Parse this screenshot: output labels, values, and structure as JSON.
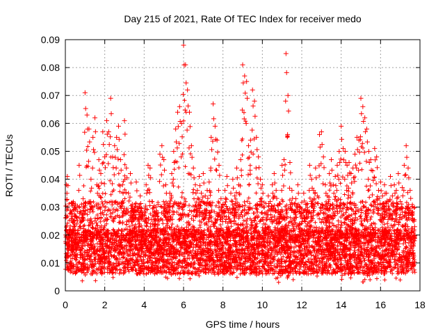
{
  "chart_data": {
    "type": "scatter",
    "title": "Day 215 of 2021, Rate Of TEC Index for receiver medo",
    "xlabel": "GPS time / hours",
    "ylabel": "ROTI / TECUs",
    "xlim": [
      0,
      18
    ],
    "ylim": [
      0,
      0.09
    ],
    "x_ticks": [
      "0",
      "2",
      "4",
      "6",
      "8",
      "10",
      "12",
      "14",
      "16",
      "18"
    ],
    "y_ticks": [
      "0",
      "0.01",
      "0.02",
      "0.03",
      "0.04",
      "0.05",
      "0.06",
      "0.07",
      "0.08",
      "0.09"
    ],
    "grid": true,
    "marker": "plus",
    "color": "#ff0000",
    "series": [
      {
        "x": [
          0.05,
          0.1,
          0.2,
          0.3,
          0.4,
          0.5,
          0.6,
          0.7,
          0.8,
          0.9,
          1.0,
          1.1,
          1.2,
          1.3,
          1.4,
          1.5,
          1.6,
          1.7,
          1.8,
          1.9,
          2.0,
          2.1,
          2.2,
          2.3,
          2.4,
          2.5,
          2.6,
          2.7,
          2.8,
          2.9,
          3.0,
          3.1,
          3.2,
          3.3,
          3.4,
          3.5,
          3.6,
          3.7,
          3.8,
          3.9,
          4.0,
          4.1,
          4.2,
          4.3,
          4.4,
          4.5,
          4.6,
          4.7,
          4.8,
          4.9,
          5.0,
          5.1,
          5.2,
          5.3,
          5.4,
          5.5,
          5.6,
          5.7,
          5.8,
          5.9,
          6.0,
          6.1,
          6.2,
          6.3,
          6.4,
          6.5,
          6.6,
          6.7,
          6.8,
          6.9,
          7.0,
          7.1,
          7.2,
          7.3,
          7.4,
          7.5,
          7.6,
          7.7,
          7.8,
          7.9,
          8.0,
          8.1,
          8.2,
          8.3,
          8.4,
          8.5,
          8.6,
          8.7,
          8.8,
          8.9,
          9.0,
          9.1,
          9.2,
          9.3,
          9.4,
          9.5,
          9.6,
          9.7,
          9.8,
          9.9,
          10.0,
          10.1,
          10.2,
          10.3,
          10.4,
          10.5,
          10.6,
          10.7,
          10.8,
          10.9,
          11.0,
          11.1,
          11.2,
          11.3,
          11.4,
          11.5,
          11.6,
          11.7,
          11.8,
          11.9,
          12.0,
          12.1,
          12.2,
          12.3,
          12.4,
          12.5,
          12.6,
          12.7,
          12.8,
          12.9,
          13.0,
          13.1,
          13.2,
          13.3,
          13.4,
          13.5,
          13.6,
          13.7,
          13.8,
          13.9,
          14.0,
          14.1,
          14.2,
          14.3,
          14.4,
          14.5,
          14.6,
          14.7,
          14.8,
          14.9,
          15.0,
          15.1,
          15.2,
          15.3,
          15.4,
          15.5,
          15.6,
          15.7,
          15.8,
          15.9,
          16.0,
          16.1,
          16.2,
          16.3,
          16.4,
          16.5,
          16.6,
          16.7,
          16.8,
          16.9,
          17.0,
          17.1,
          17.2,
          17.3,
          17.4,
          17.5,
          17.6,
          17.7
        ],
        "y": [
          0.038,
          0.041,
          0.022,
          0.018,
          0.025,
          0.016,
          0.019,
          0.045,
          0.028,
          0.033,
          0.071,
          0.063,
          0.058,
          0.04,
          0.055,
          0.062,
          0.038,
          0.047,
          0.042,
          0.057,
          0.048,
          0.061,
          0.057,
          0.069,
          0.048,
          0.052,
          0.055,
          0.059,
          0.047,
          0.038,
          0.061,
          0.044,
          0.035,
          0.042,
          0.031,
          0.028,
          0.039,
          0.025,
          0.034,
          0.022,
          0.027,
          0.038,
          0.045,
          0.044,
          0.032,
          0.025,
          0.03,
          0.028,
          0.049,
          0.052,
          0.047,
          0.038,
          0.028,
          0.035,
          0.042,
          0.05,
          0.058,
          0.064,
          0.066,
          0.06,
          0.088,
          0.081,
          0.072,
          0.064,
          0.052,
          0.044,
          0.038,
          0.036,
          0.041,
          0.035,
          0.042,
          0.034,
          0.036,
          0.039,
          0.055,
          0.067,
          0.059,
          0.054,
          0.045,
          0.033,
          0.031,
          0.036,
          0.041,
          0.028,
          0.035,
          0.04,
          0.034,
          0.044,
          0.038,
          0.047,
          0.081,
          0.077,
          0.075,
          0.052,
          0.054,
          0.072,
          0.068,
          0.055,
          0.048,
          0.04,
          0.038,
          0.03,
          0.028,
          0.034,
          0.032,
          0.038,
          0.042,
          0.036,
          0.028,
          0.031,
          0.045,
          0.047,
          0.085,
          0.07,
          0.046,
          0.036,
          0.028,
          0.033,
          0.038,
          0.03,
          0.027,
          0.035,
          0.031,
          0.029,
          0.045,
          0.04,
          0.036,
          0.044,
          0.034,
          0.056,
          0.057,
          0.048,
          0.038,
          0.034,
          0.042,
          0.047,
          0.038,
          0.041,
          0.045,
          0.05,
          0.059,
          0.051,
          0.05,
          0.045,
          0.046,
          0.042,
          0.044,
          0.049,
          0.055,
          0.054,
          0.069,
          0.066,
          0.062,
          0.058,
          0.05,
          0.047,
          0.043,
          0.051,
          0.048,
          0.036,
          0.039,
          0.034,
          0.038,
          0.035,
          0.032,
          0.041,
          0.034,
          0.038,
          0.036,
          0.042,
          0.032,
          0.037,
          0.045,
          0.052,
          0.044,
          0.036,
          0.028,
          0.025
        ]
      }
    ]
  }
}
